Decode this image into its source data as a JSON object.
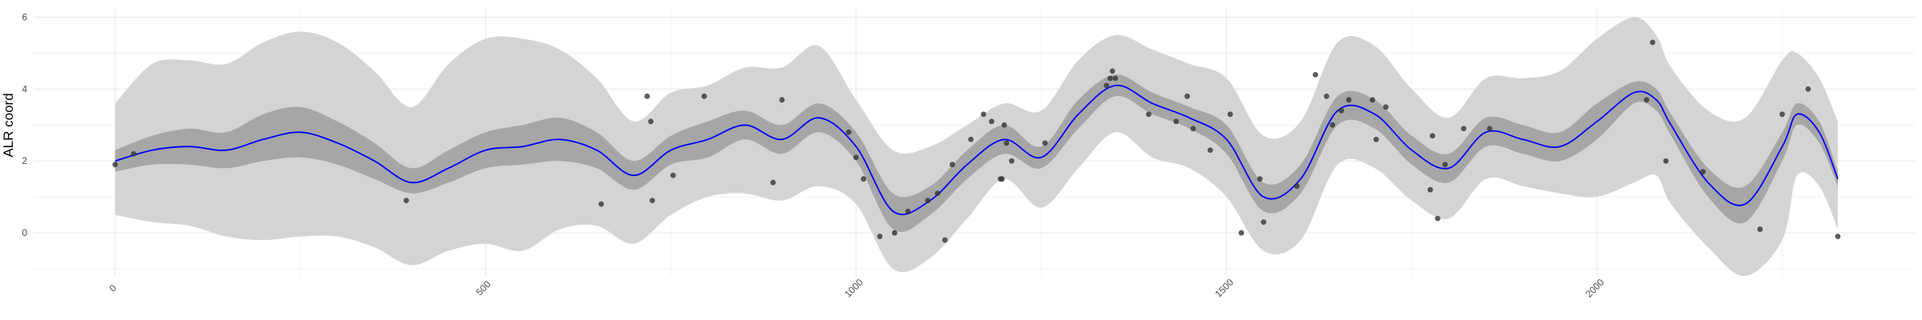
{
  "chart_data": {
    "type": "line",
    "title": "",
    "xlabel": "",
    "ylabel": "ALR coord",
    "xlim": [
      -110,
      2430
    ],
    "ylim": [
      -1.2,
      6.3
    ],
    "x_ticks": [
      0,
      500,
      1000,
      1500,
      2000
    ],
    "x_tick_labels": [
      "0",
      "500",
      "1000",
      "1500",
      "2000"
    ],
    "y_ticks": [
      0,
      2,
      4,
      6
    ],
    "y_tick_labels": [
      "0",
      "2",
      "4",
      "6"
    ],
    "grid": true,
    "legend": "none",
    "colors": {
      "mean_line": "#0000ff",
      "inner_band": "#a6a6a6",
      "outer_band": "#d4d4d4",
      "points": "#333333",
      "grid": "#ebebeb"
    },
    "mean_curve": {
      "name": "",
      "x": [
        0,
        50,
        100,
        150,
        200,
        250,
        300,
        350,
        400,
        450,
        500,
        550,
        600,
        650,
        700,
        750,
        800,
        850,
        900,
        950,
        1000,
        1050,
        1100,
        1150,
        1200,
        1250,
        1300,
        1350,
        1400,
        1450,
        1500,
        1550,
        1600,
        1650,
        1700,
        1750,
        1800,
        1850,
        1900,
        1950,
        2000,
        2050,
        2080,
        2100,
        2150,
        2200,
        2250,
        2270,
        2300,
        2325
      ],
      "y": [
        2.0,
        2.3,
        2.4,
        2.3,
        2.6,
        2.8,
        2.5,
        2.0,
        1.4,
        1.8,
        2.3,
        2.4,
        2.6,
        2.3,
        1.6,
        2.3,
        2.6,
        3.0,
        2.6,
        3.2,
        2.4,
        0.6,
        0.9,
        1.9,
        2.6,
        2.1,
        3.3,
        4.1,
        3.6,
        3.2,
        2.6,
        1.0,
        1.5,
        3.4,
        3.3,
        2.3,
        1.8,
        2.8,
        2.6,
        2.4,
        3.1,
        3.9,
        3.7,
        3.0,
        1.4,
        0.8,
        2.4,
        3.3,
        2.8,
        1.5
      ]
    },
    "inner_band": {
      "lower": [
        1.7,
        1.9,
        1.9,
        1.8,
        2.0,
        2.1,
        1.9,
        1.5,
        1.1,
        1.4,
        1.8,
        1.9,
        2.0,
        1.8,
        1.2,
        1.9,
        2.1,
        2.6,
        2.2,
        2.8,
        2.0,
        0.1,
        0.5,
        1.5,
        2.2,
        1.8,
        2.9,
        3.8,
        3.3,
        2.9,
        2.2,
        0.6,
        1.1,
        3.0,
        2.9,
        1.9,
        1.4,
        2.4,
        2.2,
        2.0,
        2.6,
        3.6,
        3.4,
        2.7,
        1.0,
        0.3,
        2.0,
        3.0,
        2.5,
        1.3
      ],
      "upper": [
        2.3,
        2.7,
        2.9,
        2.8,
        3.3,
        3.5,
        3.1,
        2.5,
        1.8,
        2.3,
        2.8,
        3.0,
        3.2,
        2.8,
        2.0,
        2.7,
        3.1,
        3.4,
        3.0,
        3.6,
        2.8,
        1.1,
        1.3,
        2.3,
        3.0,
        2.4,
        3.7,
        4.4,
        3.9,
        3.5,
        3.0,
        1.4,
        1.9,
        3.8,
        3.7,
        2.7,
        2.2,
        3.2,
        3.0,
        2.8,
        3.6,
        4.2,
        4.0,
        3.3,
        1.8,
        1.3,
        2.8,
        3.6,
        3.1,
        1.7
      ]
    },
    "outer_band": {
      "lower": [
        0.5,
        0.3,
        0.2,
        -0.1,
        -0.2,
        -0.1,
        -0.1,
        -0.4,
        -0.9,
        -0.5,
        -0.3,
        -0.5,
        0.1,
        0.2,
        -0.3,
        0.5,
        1.0,
        1.1,
        0.9,
        1.3,
        0.8,
        -1.0,
        -0.7,
        0.4,
        1.5,
        0.7,
        1.8,
        2.8,
        2.1,
        1.8,
        1.0,
        -0.5,
        -0.2,
        1.9,
        1.8,
        0.9,
        0.4,
        1.5,
        1.3,
        1.1,
        1.0,
        1.4,
        1.6,
        0.8,
        -0.4,
        -1.2,
        -0.2,
        1.6,
        1.3,
        0.1
      ],
      "upper": [
        3.6,
        4.7,
        4.8,
        4.7,
        5.3,
        5.6,
        5.3,
        4.5,
        3.5,
        4.7,
        5.4,
        5.4,
        5.1,
        4.3,
        3.1,
        3.9,
        4.1,
        4.6,
        4.6,
        5.2,
        3.7,
        2.3,
        2.4,
        3.0,
        3.6,
        3.4,
        4.8,
        5.5,
        5.1,
        4.7,
        4.3,
        2.7,
        3.1,
        5.3,
        5.2,
        4.0,
        3.2,
        4.3,
        4.3,
        4.5,
        5.4,
        6.0,
        5.5,
        4.6,
        3.4,
        3.2,
        4.8,
        5.0,
        4.3,
        3.1
      ]
    },
    "points": [
      {
        "x": 0,
        "y": 1.9
      },
      {
        "x": 25,
        "y": 2.2
      },
      {
        "x": 393,
        "y": 0.9
      },
      {
        "x": 656,
        "y": 0.8
      },
      {
        "x": 718,
        "y": 3.8
      },
      {
        "x": 723,
        "y": 3.1
      },
      {
        "x": 725,
        "y": 0.9
      },
      {
        "x": 753,
        "y": 1.6
      },
      {
        "x": 795,
        "y": 3.8
      },
      {
        "x": 888,
        "y": 1.4
      },
      {
        "x": 900,
        "y": 3.7
      },
      {
        "x": 990,
        "y": 2.8
      },
      {
        "x": 1000,
        "y": 2.1
      },
      {
        "x": 1010,
        "y": 1.5
      },
      {
        "x": 1032,
        "y": -0.1
      },
      {
        "x": 1052,
        "y": 0.0
      },
      {
        "x": 1070,
        "y": 0.6
      },
      {
        "x": 1097,
        "y": 0.9
      },
      {
        "x": 1110,
        "y": 1.1
      },
      {
        "x": 1120,
        "y": -0.2
      },
      {
        "x": 1130,
        "y": 1.9
      },
      {
        "x": 1155,
        "y": 2.6
      },
      {
        "x": 1172,
        "y": 3.3
      },
      {
        "x": 1183,
        "y": 3.1
      },
      {
        "x": 1195,
        "y": 1.5
      },
      {
        "x": 1197,
        "y": 1.5
      },
      {
        "x": 1200,
        "y": 3.0
      },
      {
        "x": 1203,
        "y": 2.5
      },
      {
        "x": 1210,
        "y": 2.0
      },
      {
        "x": 1255,
        "y": 2.5
      },
      {
        "x": 1338,
        "y": 4.1
      },
      {
        "x": 1343,
        "y": 4.3
      },
      {
        "x": 1346,
        "y": 4.5
      },
      {
        "x": 1350,
        "y": 4.3
      },
      {
        "x": 1395,
        "y": 3.3
      },
      {
        "x": 1432,
        "y": 3.1
      },
      {
        "x": 1447,
        "y": 3.8
      },
      {
        "x": 1455,
        "y": 2.9
      },
      {
        "x": 1478,
        "y": 2.3
      },
      {
        "x": 1505,
        "y": 3.3
      },
      {
        "x": 1520,
        "y": 0.0
      },
      {
        "x": 1545,
        "y": 1.5
      },
      {
        "x": 1550,
        "y": 0.3
      },
      {
        "x": 1595,
        "y": 1.3
      },
      {
        "x": 1620,
        "y": 4.4
      },
      {
        "x": 1635,
        "y": 3.8
      },
      {
        "x": 1643,
        "y": 3.0
      },
      {
        "x": 1655,
        "y": 3.4
      },
      {
        "x": 1665,
        "y": 3.7
      },
      {
        "x": 1697,
        "y": 3.7
      },
      {
        "x": 1702,
        "y": 2.6
      },
      {
        "x": 1715,
        "y": 3.5
      },
      {
        "x": 1778,
        "y": 2.7
      },
      {
        "x": 1775,
        "y": 1.2
      },
      {
        "x": 1785,
        "y": 0.4
      },
      {
        "x": 1795,
        "y": 1.9
      },
      {
        "x": 1820,
        "y": 2.9
      },
      {
        "x": 1855,
        "y": 2.9
      },
      {
        "x": 2067,
        "y": 3.7
      },
      {
        "x": 2075,
        "y": 5.3
      },
      {
        "x": 2093,
        "y": 2.0
      },
      {
        "x": 2143,
        "y": 1.7
      },
      {
        "x": 2220,
        "y": 0.1
      },
      {
        "x": 2250,
        "y": 3.3
      },
      {
        "x": 2285,
        "y": 4.0
      },
      {
        "x": 2325,
        "y": -0.1
      }
    ]
  }
}
